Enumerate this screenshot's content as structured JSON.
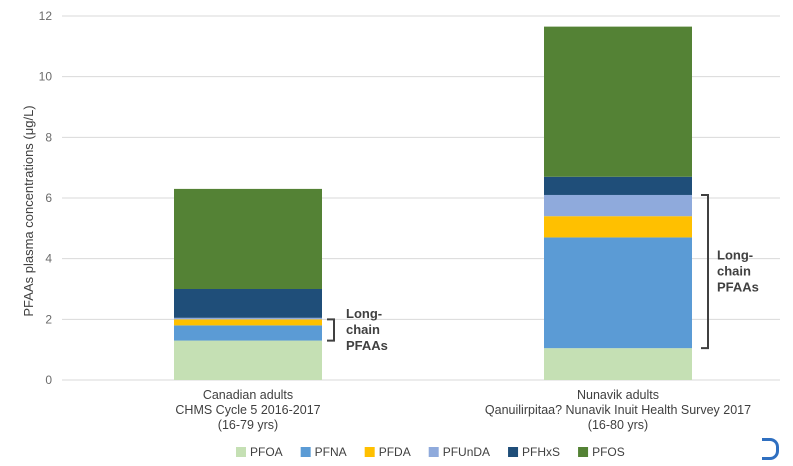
{
  "chart_data": {
    "type": "bar",
    "stacked": true,
    "ylabel": "PFAAs plasma concentrations (μg/L)",
    "ylim": [
      0,
      12
    ],
    "yticks": [
      0,
      2,
      4,
      6,
      8,
      10,
      12
    ],
    "grid": true,
    "legend_position": "bottom",
    "categories": [
      [
        "Canadian adults",
        "CHMS Cycle 5 2016-2017",
        "(16-79 yrs)"
      ],
      [
        "Nunavik adults",
        "Qanuilirpitaa? Nunavik Inuit Health Survey 2017",
        "(16-80 yrs)"
      ]
    ],
    "series": [
      {
        "name": "PFOA",
        "color": "#c5e0b4",
        "values": [
          1.3,
          1.05
        ]
      },
      {
        "name": "PFNA",
        "color": "#5b9bd5",
        "values": [
          0.5,
          3.65
        ]
      },
      {
        "name": "PFDA",
        "color": "#ffc000",
        "values": [
          0.2,
          0.7
        ]
      },
      {
        "name": "PFUnDA",
        "color": "#8faadc",
        "values": [
          0.05,
          0.7
        ]
      },
      {
        "name": "PFHxS",
        "color": "#1f4e79",
        "values": [
          0.95,
          0.6
        ]
      },
      {
        "name": "PFOS",
        "color": "#548235",
        "values": [
          3.3,
          4.95
        ]
      }
    ],
    "annotations": [
      {
        "lines": [
          "Long-",
          "chain",
          "PFAAs"
        ],
        "bar": 0,
        "from": 1.3,
        "to": 2.0
      },
      {
        "lines": [
          "Long-",
          "chain",
          "PFAAs"
        ],
        "bar": 1,
        "from": 1.05,
        "to": 6.1
      }
    ]
  }
}
